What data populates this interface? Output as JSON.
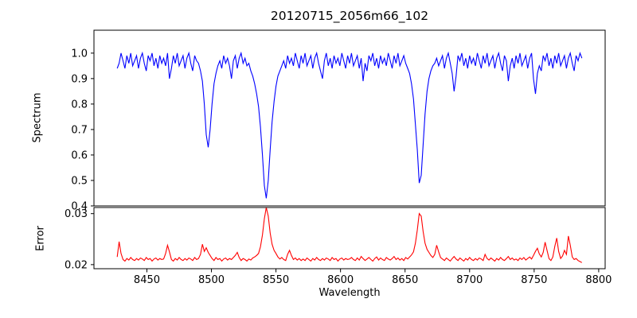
{
  "chart_data": {
    "type": "line",
    "title": "20120715_2056m66_102",
    "xlabel": "Wavelength",
    "grid": false,
    "xlim": [
      8409,
      8805
    ],
    "xticks": [
      8450,
      8500,
      8550,
      8600,
      8650,
      8700,
      8750,
      8800
    ],
    "x_start": 8427,
    "x_step": 1.5,
    "panels": [
      {
        "ylabel": "Spectrum",
        "line_color": "#0000ff",
        "ylim": [
          0.4,
          1.09
        ],
        "yticks": [
          "1.0",
          "0.9",
          "0.8",
          "0.7",
          "0.6",
          "0.5",
          "0.4"
        ],
        "ytick_values": [
          1.0,
          0.9,
          0.8,
          0.7,
          0.6,
          0.5,
          0.4
        ],
        "value_scale": 0.01,
        "values": [
          94,
          96,
          100,
          97,
          94,
          99,
          96,
          100,
          95,
          97,
          99,
          94,
          98,
          100,
          96,
          93,
          99,
          97,
          100,
          95,
          98,
          94,
          99,
          96,
          98,
          95,
          100,
          90,
          94,
          99,
          96,
          100,
          95,
          97,
          99,
          94,
          98,
          100,
          96,
          93,
          99,
          97,
          96,
          93,
          89,
          80,
          68,
          63,
          70,
          80,
          88,
          92,
          95,
          97,
          94,
          99,
          96,
          98,
          95,
          90,
          97,
          99,
          94,
          98,
          100,
          96,
          98,
          95,
          96,
          93,
          91,
          88,
          84,
          79,
          71,
          60,
          48,
          43,
          50,
          62,
          73,
          81,
          87,
          91,
          93,
          95,
          97,
          94,
          99,
          96,
          98,
          95,
          100,
          97,
          94,
          99,
          96,
          100,
          95,
          97,
          99,
          94,
          98,
          100,
          96,
          93,
          90,
          97,
          100,
          95,
          98,
          94,
          99,
          96,
          98,
          95,
          100,
          97,
          94,
          99,
          96,
          100,
          95,
          97,
          99,
          94,
          98,
          89,
          96,
          93,
          99,
          97,
          100,
          95,
          98,
          94,
          99,
          96,
          98,
          95,
          100,
          97,
          94,
          99,
          96,
          100,
          95,
          97,
          99,
          96,
          94,
          92,
          88,
          82,
          72,
          62,
          49,
          52,
          64,
          76,
          85,
          90,
          93,
          95,
          96,
          98,
          95,
          97,
          99,
          94,
          98,
          100,
          96,
          92,
          85,
          91,
          99,
          97,
          100,
          95,
          98,
          94,
          99,
          96,
          98,
          95,
          100,
          97,
          94,
          99,
          96,
          100,
          95,
          97,
          99,
          94,
          98,
          100,
          96,
          93,
          99,
          97,
          89,
          95,
          98,
          94,
          99,
          96,
          100,
          95,
          97,
          99,
          94,
          98,
          100,
          90,
          84,
          92,
          95,
          93,
          99,
          97,
          100,
          95,
          98,
          94,
          99,
          96,
          100,
          95,
          97,
          99,
          94,
          98,
          100,
          96,
          93,
          99,
          97,
          100,
          98
        ]
      },
      {
        "ylabel": "Error",
        "line_color": "#ff0000",
        "ylim": [
          0.0192,
          0.0312
        ],
        "yticks": [
          "0.03",
          "0.02"
        ],
        "ytick_values": [
          0.03,
          0.02
        ],
        "value_scale": 0.0001,
        "values": [
          215,
          245,
          222,
          210,
          207,
          212,
          209,
          214,
          210,
          208,
          212,
          209,
          213,
          211,
          208,
          214,
          210,
          212,
          207,
          211,
          213,
          209,
          212,
          210,
          211,
          222,
          238,
          225,
          210,
          207,
          212,
          209,
          214,
          210,
          208,
          212,
          209,
          213,
          211,
          208,
          214,
          210,
          212,
          220,
          240,
          226,
          233,
          224,
          218,
          212,
          208,
          214,
          210,
          212,
          207,
          211,
          213,
          209,
          212,
          210,
          214,
          218,
          224,
          214,
          208,
          212,
          210,
          207,
          211,
          209,
          213,
          215,
          218,
          222,
          235,
          258,
          290,
          312,
          295,
          262,
          240,
          228,
          222,
          215,
          211,
          214,
          210,
          208,
          220,
          228,
          218,
          210,
          213,
          209,
          212,
          208,
          211,
          208,
          213,
          210,
          207,
          212,
          209,
          214,
          210,
          208,
          212,
          209,
          213,
          211,
          208,
          214,
          210,
          212,
          207,
          211,
          213,
          209,
          212,
          210,
          211,
          214,
          210,
          208,
          213,
          209,
          216,
          212,
          208,
          211,
          214,
          210,
          207,
          212,
          215,
          209,
          213,
          210,
          208,
          214,
          211,
          209,
          212,
          216,
          210,
          213,
          209,
          212,
          208,
          214,
          211,
          215,
          219,
          225,
          242,
          268,
          300,
          295,
          265,
          242,
          230,
          224,
          218,
          214,
          220,
          238,
          225,
          214,
          211,
          208,
          213,
          210,
          207,
          212,
          216,
          211,
          208,
          213,
          210,
          207,
          212,
          209,
          214,
          210,
          208,
          212,
          209,
          213,
          211,
          208,
          220,
          212,
          209,
          213,
          210,
          207,
          212,
          209,
          214,
          210,
          208,
          212,
          216,
          210,
          213,
          209,
          211,
          208,
          213,
          210,
          214,
          209,
          212,
          215,
          211,
          218,
          226,
          232,
          221,
          215,
          224,
          244,
          228,
          212,
          208,
          215,
          236,
          252,
          226,
          212,
          217,
          228,
          220,
          256,
          238,
          215,
          210,
          212,
          208,
          206,
          204
        ]
      }
    ]
  }
}
